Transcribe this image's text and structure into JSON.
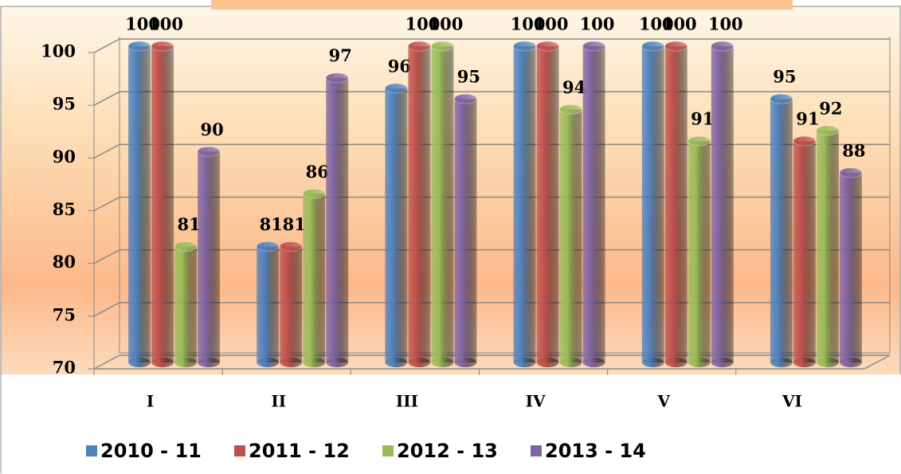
{
  "chart_data": {
    "type": "bar",
    "categories": [
      "I",
      "II",
      "III",
      "IV",
      "V",
      "VI"
    ],
    "series": [
      {
        "name": "2010 - 11",
        "color": "#4f81bd",
        "values": [
          100,
          81,
          96,
          100,
          100,
          95
        ]
      },
      {
        "name": "2011 - 12",
        "color": "#c0504d",
        "values": [
          100,
          81,
          100,
          100,
          100,
          91
        ]
      },
      {
        "name": "2012 - 13",
        "color": "#9bbb59",
        "values": [
          81,
          86,
          100,
          94,
          91,
          92
        ]
      },
      {
        "name": "2013 - 14",
        "color": "#8064a2",
        "values": [
          90,
          97,
          95,
          100,
          100,
          88
        ]
      }
    ],
    "ylim": [
      70,
      100
    ],
    "yticks": [
      70,
      75,
      80,
      85,
      90,
      95,
      100
    ],
    "grid": true,
    "legend": "bottom"
  }
}
